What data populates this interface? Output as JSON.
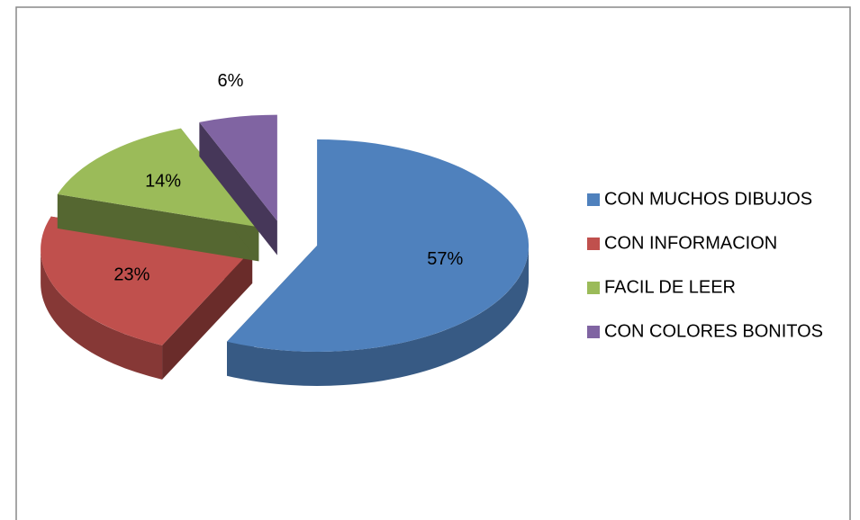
{
  "chart_data": {
    "type": "pie",
    "categories": [
      "CON MUCHOS DIBUJOS",
      "CON INFORMACION",
      "FACIL DE LEER",
      "CON COLORES BONITOS"
    ],
    "values": [
      57,
      23,
      14,
      6
    ],
    "value_labels": [
      "57%",
      "23%",
      "14%",
      "6%"
    ],
    "colors": [
      "#4f81bd",
      "#c0504d",
      "#9bbb59",
      "#8064a2"
    ],
    "legend": "right"
  }
}
